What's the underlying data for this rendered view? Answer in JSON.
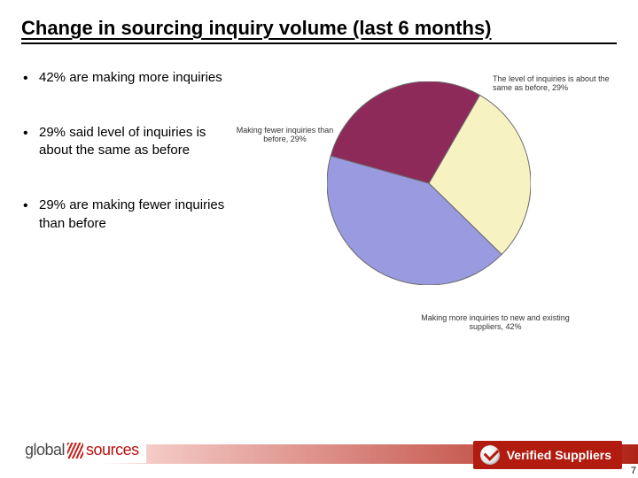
{
  "title": "Change in sourcing inquiry volume (last 6 months)",
  "bullets": [
    "42% are making more inquiries",
    "29% said level of inquiries is about the same as before",
    "29% are making fewer inquiries than before"
  ],
  "chart": {
    "type": "pie",
    "background_color": "#ffffff",
    "stroke_color": "#6b6b6b",
    "stroke_width": 1,
    "radius": 115,
    "start_angle_deg": -60,
    "direction": "clockwise",
    "label_fontsize": 9,
    "label_color": "#333333",
    "slices": [
      {
        "label": "The level of inquiries is about the same as before, 29%",
        "value": 29,
        "color": "#f6f2c2"
      },
      {
        "label": "Making more inquiries to new and existing suppliers, 42%",
        "value": 42,
        "color": "#9a9ae0"
      },
      {
        "label": "Making fewer inquiries than before, 29%",
        "value": 29,
        "color": "#8e2a5a"
      }
    ]
  },
  "footer": {
    "logo_left": "global",
    "logo_right": "sources",
    "badge": "Verified Suppliers",
    "gradient_from": "#ffffff",
    "gradient_to": "#b02418"
  },
  "page_number": "7"
}
